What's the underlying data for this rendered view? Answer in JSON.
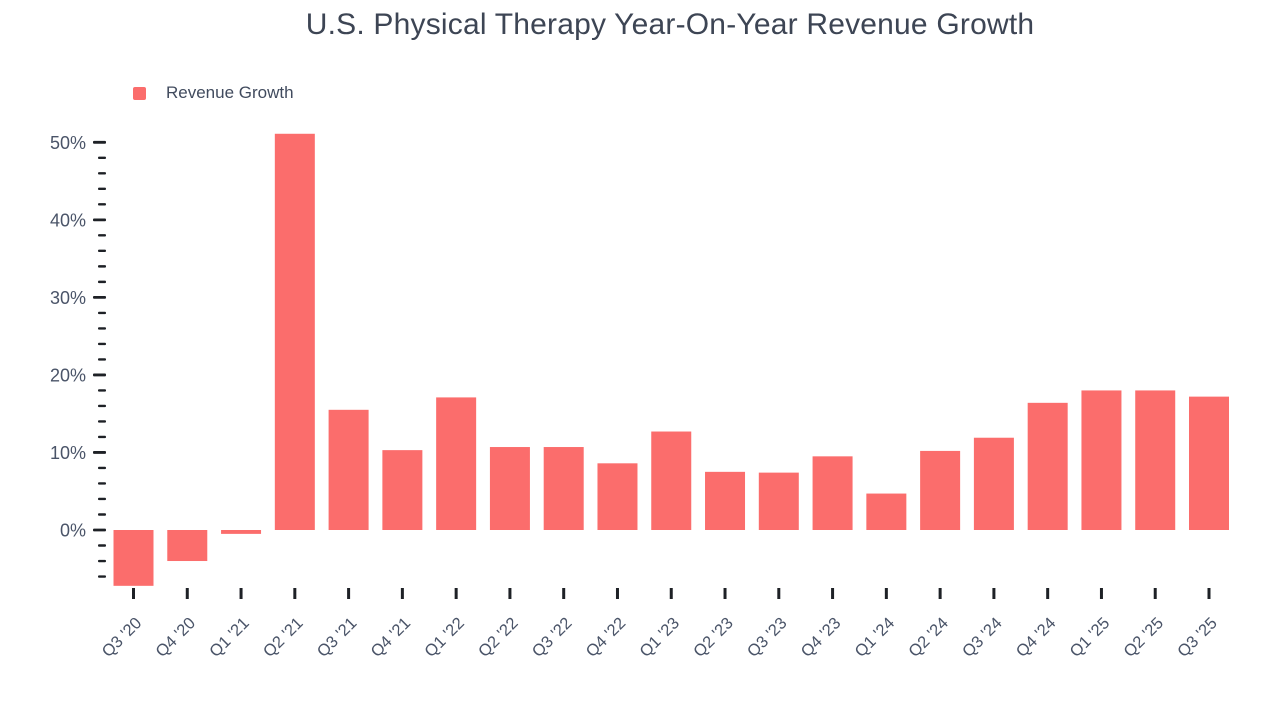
{
  "chart_data": {
    "type": "bar",
    "title": "U.S. Physical Therapy Year-On-Year Revenue Growth",
    "legend": [
      "Revenue Growth"
    ],
    "categories": [
      "Q3 '20",
      "Q4 '20",
      "Q1 '21",
      "Q2 '21",
      "Q3 '21",
      "Q4 '21",
      "Q1 '22",
      "Q2 '22",
      "Q3 '22",
      "Q4 '22",
      "Q1 '23",
      "Q2 '23",
      "Q3 '23",
      "Q4 '23",
      "Q1 '24",
      "Q2 '24",
      "Q3 '24",
      "Q4 '24",
      "Q1 '25",
      "Q2 '25",
      "Q3 '25"
    ],
    "values": [
      -7.2,
      -4.0,
      -0.5,
      51.1,
      15.5,
      10.3,
      17.1,
      10.7,
      10.7,
      8.6,
      12.7,
      7.5,
      7.4,
      9.5,
      4.7,
      10.2,
      11.9,
      16.4,
      18.0,
      18.0,
      17.2
    ],
    "unit": "%",
    "xlabel": "",
    "ylabel": "",
    "y_ticks": [
      0,
      10,
      20,
      30,
      40,
      50
    ],
    "y_tick_labels": [
      "0%",
      "10%",
      "20%",
      "30%",
      "40%",
      "50%"
    ],
    "minor_tick_step": 2,
    "minor_tick_min": -6,
    "minor_tick_max": 50,
    "ylim": [
      -8,
      52
    ],
    "grid": false,
    "legend_position": "top-left",
    "bar_color": "#fb6d6c",
    "title_color": "#3d4554",
    "axis_label_color": "#4a5468",
    "tick_color": "#1e2126"
  }
}
